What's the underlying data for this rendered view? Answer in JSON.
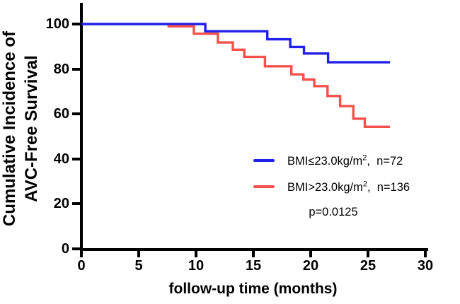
{
  "chart_data": {
    "type": "line",
    "subtype": "kaplan-meier-step-survival",
    "title": "",
    "xlabel": "follow-up time (months)",
    "ylabel_line1": "Cumulative Incidence of",
    "ylabel_line2": "AVC-Free Survival",
    "xlim": [
      0,
      30
    ],
    "ylim": [
      0,
      100
    ],
    "x_ticks": [
      "0",
      "5",
      "10",
      "15",
      "20",
      "25",
      "30"
    ],
    "y_ticks_top_to_bottom": [
      "100",
      "80",
      "60",
      "40",
      "20",
      "0"
    ],
    "grid": false,
    "axis_color": "#000000",
    "legend_position": "inside-right-middle",
    "annotation_p_value": "p=0.0125",
    "series": [
      {
        "name": "BMI≤23.0kg/m², n=72",
        "legend_prefix": "BMI≤23.0kg/m",
        "legend_sup": "2",
        "legend_suffix": ",  n=72",
        "color": "#2020e8",
        "points_months_percent": [
          [
            0,
            100
          ],
          [
            10.8,
            96.8
          ],
          [
            16.2,
            93.2
          ],
          [
            18.2,
            89.8
          ],
          [
            19.4,
            86.9
          ],
          [
            21.5,
            83.0
          ],
          [
            26.9,
            83.0
          ]
        ]
      },
      {
        "name": "BMI>23.0kg/m², n=136",
        "legend_prefix": "BMI>23.0kg/m",
        "legend_sup": "2",
        "legend_suffix": ",  n=136",
        "color": "#f4514c",
        "points_months_percent": [
          [
            7.5,
            99
          ],
          [
            9.8,
            95.7
          ],
          [
            11.9,
            91.8
          ],
          [
            13.2,
            88.6
          ],
          [
            14.2,
            85.4
          ],
          [
            16.0,
            81.2
          ],
          [
            18.3,
            77.6
          ],
          [
            19.35,
            75.3
          ],
          [
            20.3,
            72.4
          ],
          [
            21.45,
            68.0
          ],
          [
            22.55,
            63.5
          ],
          [
            23.7,
            57.9
          ],
          [
            24.7,
            54.3
          ],
          [
            26.9,
            54.3
          ]
        ]
      }
    ]
  }
}
